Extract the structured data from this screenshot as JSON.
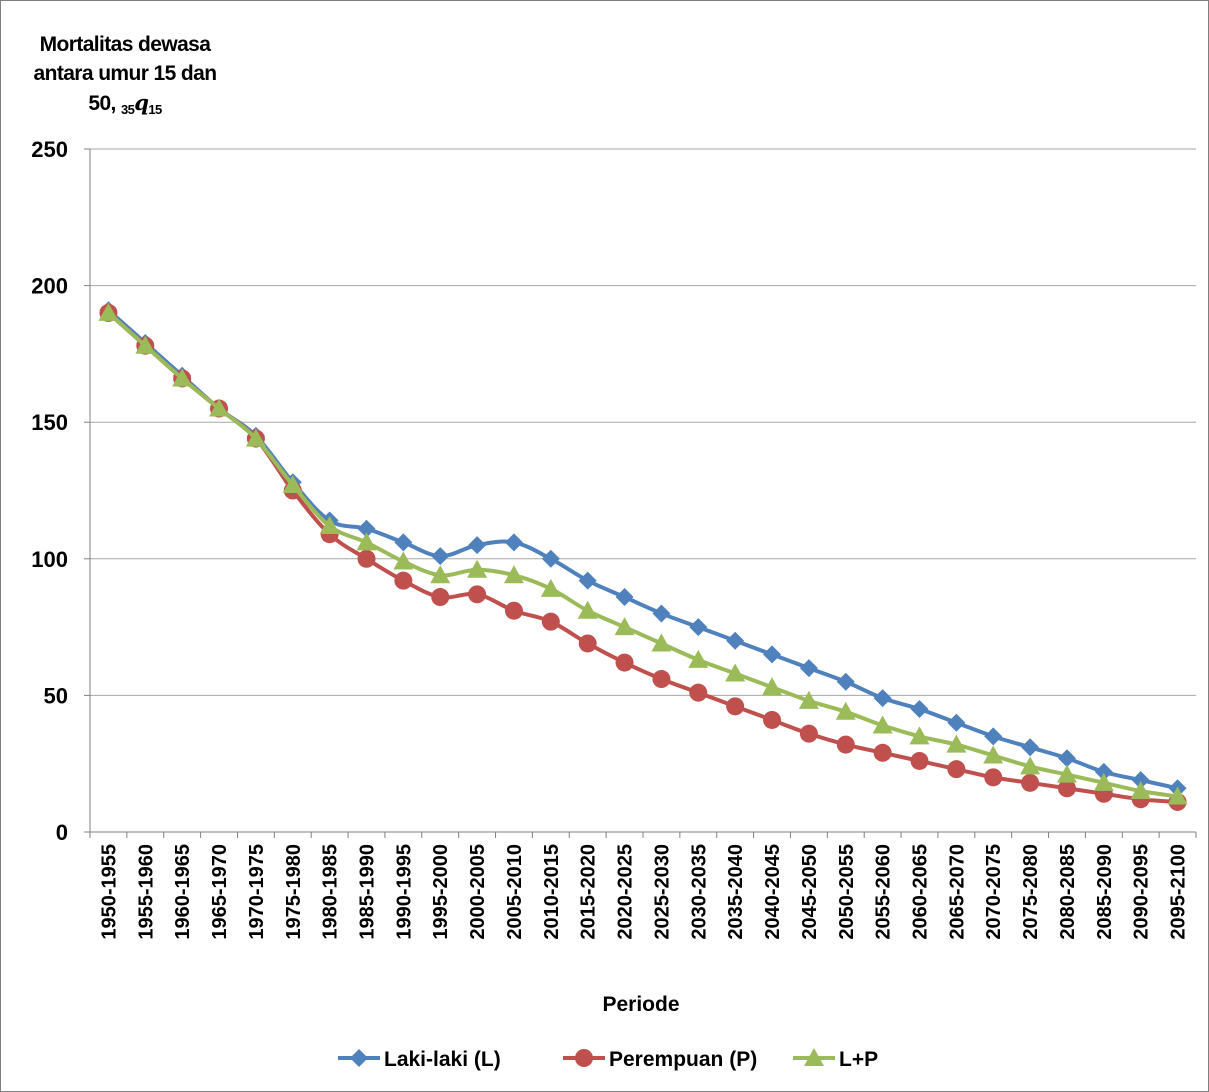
{
  "chart_data": {
    "type": "line",
    "ylabel": {
      "line1": "Mortalitas dewasa",
      "line2": "antara umur 15 dan",
      "prefix": "50,",
      "sub_left": "35",
      "symbol": "q",
      "sub_right": "15"
    },
    "xlabel": "Periode",
    "ylim": [
      0,
      250
    ],
    "yticks": [
      0,
      50,
      100,
      150,
      200,
      250
    ],
    "grid": true,
    "legend_position": "bottom",
    "categories": [
      "1950-1955",
      "1955-1960",
      "1960-1965",
      "1965-1970",
      "1970-1975",
      "1975-1980",
      "1980-1985",
      "1985-1990",
      "1990-1995",
      "1995-2000",
      "2000-2005",
      "2005-2010",
      "2010-2015",
      "2015-2020",
      "2020-2025",
      "2025-2030",
      "2030-2035",
      "2035-2040",
      "2040-2045",
      "2045-2050",
      "2050-2055",
      "2055-2060",
      "2060-2065",
      "2065-2070",
      "2070-2075",
      "2075-2080",
      "2080-2085",
      "2085-2090",
      "2090-2095",
      "2095-2100"
    ],
    "series": [
      {
        "name": "Laki-laki (L)",
        "color": "#4f81bd",
        "marker": "diamond",
        "values": [
          191,
          179,
          167,
          155,
          145,
          128,
          114,
          111,
          106,
          101,
          105,
          106,
          100,
          92,
          86,
          80,
          75,
          70,
          65,
          60,
          55,
          49,
          45,
          40,
          35,
          31,
          27,
          22,
          19,
          16
        ]
      },
      {
        "name": "Perempuan (P)",
        "color": "#c0504d",
        "marker": "circle",
        "values": [
          190,
          178,
          166,
          155,
          144,
          125,
          109,
          100,
          92,
          86,
          87,
          81,
          77,
          69,
          62,
          56,
          51,
          46,
          41,
          36,
          32,
          29,
          26,
          23,
          20,
          18,
          16,
          14,
          12,
          11
        ]
      },
      {
        "name": "L+P",
        "color": "#9bbb59",
        "marker": "triangle",
        "values": [
          190,
          178,
          166,
          155,
          144,
          127,
          112,
          106,
          99,
          94,
          96,
          94,
          89,
          81,
          75,
          69,
          63,
          58,
          53,
          48,
          44,
          39,
          35,
          32,
          28,
          24,
          21,
          18,
          15,
          13
        ]
      }
    ]
  }
}
